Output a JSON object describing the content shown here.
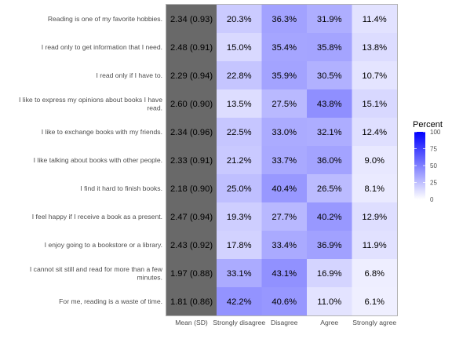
{
  "chart_data": {
    "type": "heatmap",
    "title": "",
    "xlabel": "",
    "ylabel": "",
    "columns": [
      "Mean (SD)",
      "Strongly disagree",
      "Disagree",
      "Agree",
      "Strongly agree"
    ],
    "rows": [
      {
        "label": "Reading is one of my favorite hobbies.",
        "mean_sd": "2.34 (0.93)",
        "values": [
          20.3,
          36.3,
          31.9,
          11.4
        ]
      },
      {
        "label": "I read only to get information that I need.",
        "mean_sd": "2.48 (0.91)",
        "values": [
          15.0,
          35.4,
          35.8,
          13.8
        ]
      },
      {
        "label": "I read only if I have to.",
        "mean_sd": "2.29 (0.94)",
        "values": [
          22.8,
          35.9,
          30.5,
          10.7
        ]
      },
      {
        "label": "I like to express my opinions about books I have read.",
        "mean_sd": "2.60 (0.90)",
        "values": [
          13.5,
          27.5,
          43.8,
          15.1
        ]
      },
      {
        "label": "I like to exchange books with my friends.",
        "mean_sd": "2.34 (0.96)",
        "values": [
          22.5,
          33.0,
          32.1,
          12.4
        ]
      },
      {
        "label": "I like talking about books with other people.",
        "mean_sd": "2.33 (0.91)",
        "values": [
          21.2,
          33.7,
          36.0,
          9.0
        ]
      },
      {
        "label": "I find it hard to finish books.",
        "mean_sd": "2.18 (0.90)",
        "values": [
          25.0,
          40.4,
          26.5,
          8.1
        ]
      },
      {
        "label": "I feel happy if I receive a book as a present.",
        "mean_sd": "2.47 (0.94)",
        "values": [
          19.3,
          27.7,
          40.2,
          12.9
        ]
      },
      {
        "label": "I enjoy going to a bookstore or a library.",
        "mean_sd": "2.43 (0.92)",
        "values": [
          17.8,
          33.4,
          36.9,
          11.9
        ]
      },
      {
        "label": "I cannot sit still and read for more than a few minutes.",
        "mean_sd": "1.97 (0.88)",
        "values": [
          33.1,
          43.1,
          16.9,
          6.8
        ]
      },
      {
        "label": "For me, reading is a waste of time.",
        "mean_sd": "1.81 (0.86)",
        "values": [
          42.2,
          40.6,
          11.0,
          6.1
        ]
      }
    ],
    "value_format": "percent_1dp",
    "legend": {
      "title": "Percent",
      "position": "right",
      "ticks": [
        0,
        25,
        50,
        75,
        100
      ],
      "range": [
        0,
        100
      ],
      "color_low": "#ffffff",
      "color_high": "#0000ff"
    },
    "mean_column_color": "#696969",
    "panel_border_color": "#b3b3b3",
    "grid": false
  }
}
